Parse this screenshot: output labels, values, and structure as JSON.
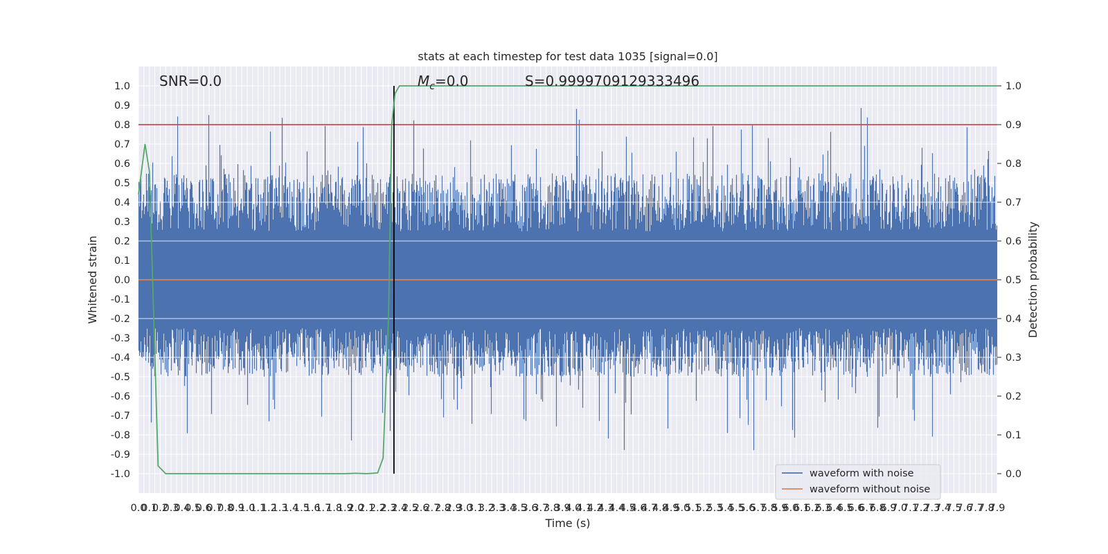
{
  "chart_data": {
    "type": "line",
    "title": "stats at each timestep for test data 1035 [signal=0.0]",
    "xlabel": "Time (s)",
    "ylabel_left": "Whitened strain",
    "ylabel_right": "Detection probability",
    "xlim": [
      0.0,
      7.9
    ],
    "ylim_left": [
      -1.1,
      1.1
    ],
    "ylim_right": [
      -0.05,
      1.05
    ],
    "x_tick_step": 0.05,
    "y_ticks_left": [
      "1.0",
      "0.9",
      "0.8",
      "0.7",
      "0.6",
      "0.5",
      "0.4",
      "0.3",
      "0.2",
      "0.1",
      "0.0",
      "-0.1",
      "-0.2",
      "-0.3",
      "-0.4",
      "-0.5",
      "-0.6",
      "-0.7",
      "-0.8",
      "-0.9",
      "-1.0"
    ],
    "y_ticks_right": [
      "1.0",
      "0.9",
      "0.8",
      "0.7",
      "0.6",
      "0.5",
      "0.4",
      "0.3",
      "0.2",
      "0.1",
      "0.0"
    ],
    "grid": true,
    "legend_position": "bottom-right",
    "annotations": {
      "snr": "SNR=0.0",
      "mc_symbol": "M",
      "mc_sub": "c",
      "mc_value": "=0.0",
      "s": "S=0.9999709129333496"
    },
    "threshold_line": {
      "axis": "right",
      "value": 0.9,
      "color": "#c44e52"
    },
    "event_marker": {
      "x": 2.35,
      "color": "#000000"
    },
    "series": [
      {
        "name": "waveform with noise",
        "axis": "left",
        "color": "#4c72b0",
        "note": "dense noise trace, amplitude envelope roughly between -0.85 and 0.95"
      },
      {
        "name": "waveform without noise",
        "axis": "left",
        "color": "#dd8452",
        "values_constant": 0.0
      },
      {
        "name": "",
        "axis": "right",
        "color": "#55a868",
        "x": [
          0.0,
          0.06,
          0.1,
          0.13,
          0.18,
          0.25,
          0.5,
          1.0,
          1.5,
          1.9,
          2.0,
          2.1,
          2.2,
          2.25,
          2.3,
          2.33,
          2.36,
          2.4,
          2.45,
          3.0,
          4.0,
          5.0,
          6.0,
          7.0,
          7.9
        ],
        "values": [
          0.72,
          0.85,
          0.78,
          0.5,
          0.02,
          0.0,
          0.0,
          0.0,
          0.0,
          0.0,
          0.001,
          0.0,
          0.002,
          0.04,
          0.4,
          0.9,
          0.98,
          1.0,
          1.0,
          1.0,
          1.0,
          1.0,
          1.0,
          1.0,
          1.0
        ]
      }
    ]
  }
}
